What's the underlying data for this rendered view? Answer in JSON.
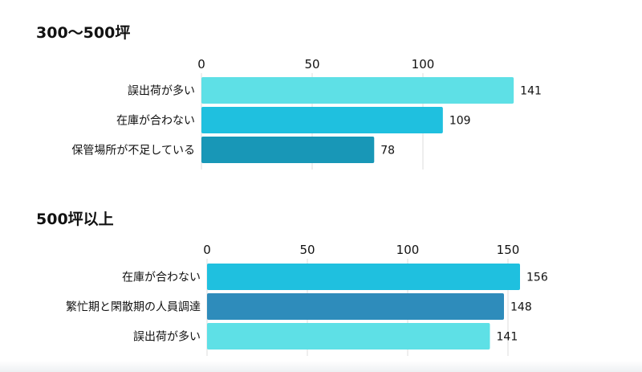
{
  "chart_data": [
    {
      "type": "bar",
      "orientation": "horizontal",
      "title": "300〜500坪",
      "categories": [
        "誤出荷が多い",
        "在庫が合わない",
        "保管場所が不足している"
      ],
      "values": [
        141,
        109,
        78
      ],
      "bar_colors": [
        "#5ee0e6",
        "#1fc0df",
        "#1897b7"
      ],
      "xticks": [
        "0",
        "50",
        "100"
      ],
      "xlim": [
        0,
        150
      ],
      "grid": true,
      "legend": "none"
    },
    {
      "type": "bar",
      "orientation": "horizontal",
      "title": "500坪以上",
      "categories": [
        "在庫が合わない",
        "繁忙期と閑散期の人員調達",
        "誤出荷が多い"
      ],
      "values": [
        156,
        148,
        141
      ],
      "bar_colors": [
        "#1fc0df",
        "#2e8cbb",
        "#5ee0e6"
      ],
      "xticks": [
        "0",
        "50",
        "100",
        "150"
      ],
      "xlim": [
        0,
        160
      ],
      "grid": true,
      "legend": "none"
    }
  ]
}
